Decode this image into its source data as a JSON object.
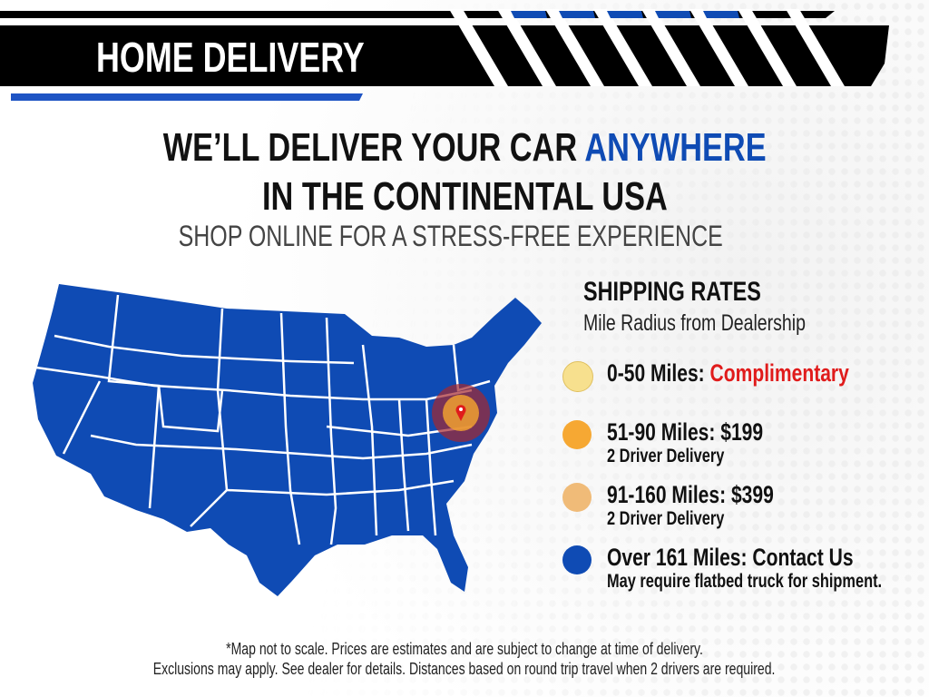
{
  "banner": {
    "title": "HOME DELIVERY"
  },
  "headline": {
    "line1_prefix": "WE’LL DELIVER YOUR CAR ",
    "line1_accent": "ANYWHERE",
    "line2": "IN THE CONTINENTAL USA",
    "tagline": "SHOP ONLINE FOR A STRESS-FREE EXPERIENCE"
  },
  "rates": {
    "title": "SHIPPING RATES",
    "subtitle": "Mile Radius from Dealership",
    "items": [
      {
        "label": "0-50 Miles: ",
        "value": "Complimentary",
        "note": "",
        "color": "#f7e08e"
      },
      {
        "label": "51-90 Miles: $199",
        "value": "",
        "note": "2 Driver Delivery",
        "color": "#f6a833"
      },
      {
        "label": "91-160 Miles: $399",
        "value": "",
        "note": "2 Driver Delivery",
        "color": "#f0bb78"
      },
      {
        "label": "Over 161 Miles: Contact Us",
        "value": "",
        "note": "May require flatbed truck for shipment.",
        "color": "#0f4bb4"
      }
    ]
  },
  "footer": {
    "line1": "*Map not to scale. Prices are estimates and are subject to change at time of delivery.",
    "line2": "Exclusions may apply. See dealer for details. Distances based on round trip travel when 2 drivers are required."
  },
  "colors": {
    "brand_blue": "#0f4bb4",
    "highlight_red": "#e01b1b",
    "banner_black": "#000000"
  }
}
